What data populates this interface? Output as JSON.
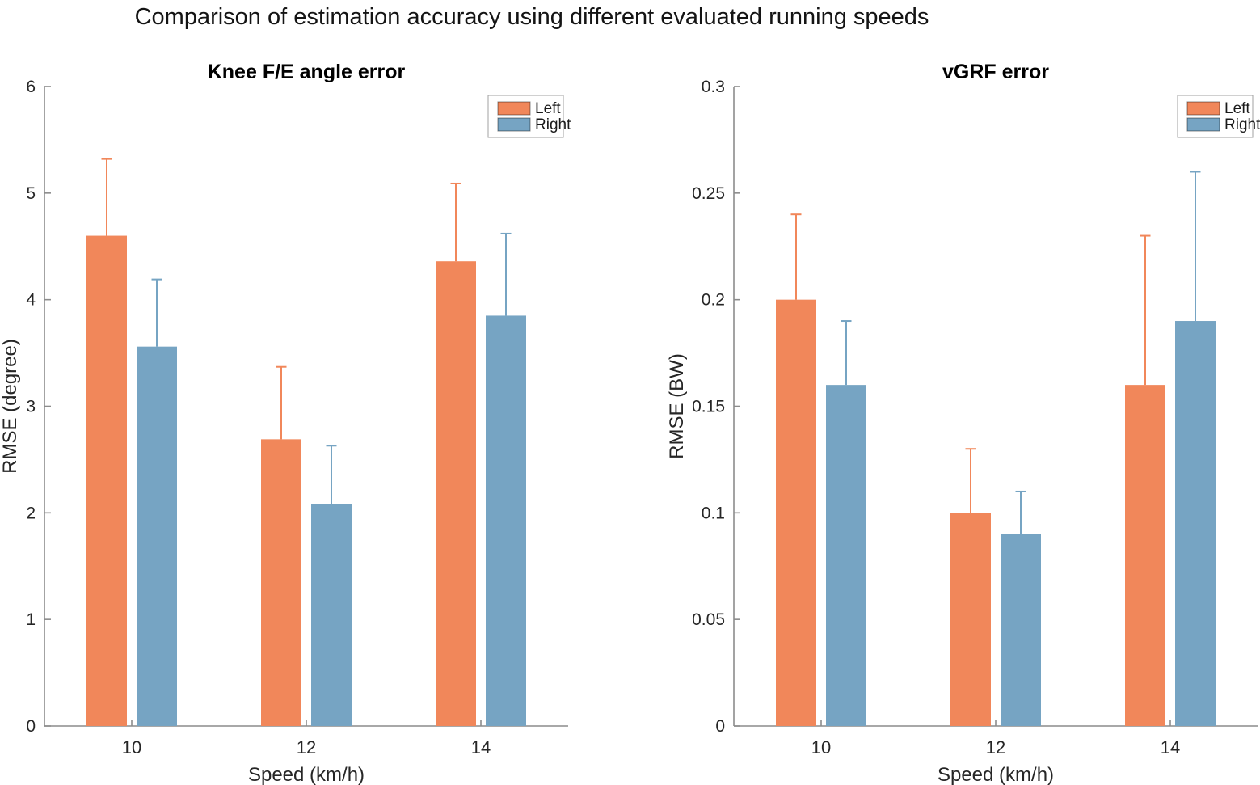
{
  "figure": {
    "title": "Comparison of estimation accuracy using different evaluated running speeds",
    "colors": {
      "left": "#F1875A",
      "right": "#76A4C3",
      "axis": "#8C8C8C",
      "tick_text": "#262626",
      "title_text": "#000000",
      "legend_border": "#A0A0A0"
    }
  },
  "chart_data": [
    {
      "type": "bar",
      "title": "Knee F/E angle error",
      "xlabel": "Speed (km/h)",
      "ylabel": "RMSE (degree)",
      "categories": [
        "10",
        "12",
        "14"
      ],
      "series": [
        {
          "name": "Left",
          "values": [
            4.6,
            2.69,
            4.36
          ],
          "errors": [
            0.72,
            0.68,
            0.73
          ]
        },
        {
          "name": "Right",
          "values": [
            3.56,
            2.08,
            3.85
          ],
          "errors": [
            0.63,
            0.55,
            0.77
          ]
        }
      ],
      "ylim": [
        0,
        6
      ],
      "yticks": [
        "0",
        "1",
        "2",
        "3",
        "4",
        "5",
        "6"
      ],
      "grid": false,
      "legend_position": "top-right",
      "legend_entries": [
        "Left",
        "Right"
      ]
    },
    {
      "type": "bar",
      "title": "vGRF error",
      "xlabel": "Speed (km/h)",
      "ylabel": "RMSE (BW)",
      "categories": [
        "10",
        "12",
        "14"
      ],
      "series": [
        {
          "name": "Left",
          "values": [
            0.2,
            0.1,
            0.16
          ],
          "errors": [
            0.04,
            0.03,
            0.07
          ]
        },
        {
          "name": "Right",
          "values": [
            0.16,
            0.09,
            0.19
          ],
          "errors": [
            0.03,
            0.02,
            0.07
          ]
        }
      ],
      "ylim": [
        0,
        0.3
      ],
      "yticks": [
        "0",
        "0.05",
        "0.1",
        "0.15",
        "0.2",
        "0.25",
        "0.3"
      ],
      "grid": false,
      "legend_position": "top-right",
      "legend_entries": [
        "Left",
        "Right"
      ]
    }
  ]
}
